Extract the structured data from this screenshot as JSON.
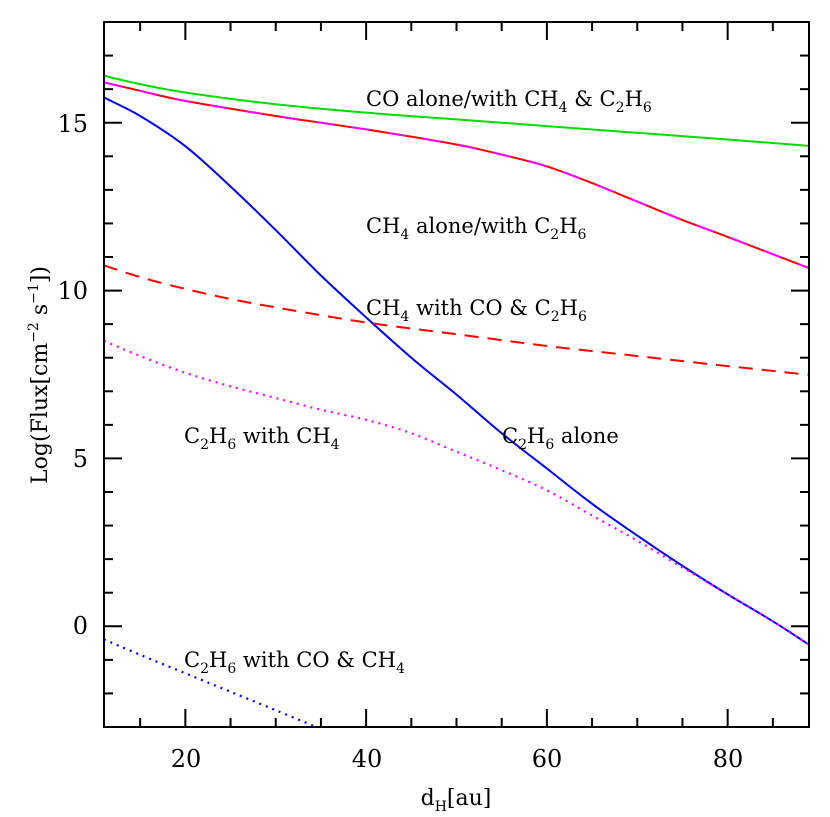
{
  "chart_data": {
    "type": "line",
    "title": "",
    "xlabel": "d_H[au]",
    "ylabel": "Log(Flux[cm^-2 s^-1])",
    "xlim": [
      11,
      89
    ],
    "ylim": [
      -3,
      18
    ],
    "xticks": [
      20,
      40,
      60,
      80
    ],
    "yticks": [
      0,
      5,
      10,
      15
    ],
    "grid": false,
    "legend": "inline annotations",
    "series": [
      {
        "name": "CO alone/with CH4 & C2H6",
        "color": "#00dd00",
        "style": "solid",
        "x": [
          11,
          15,
          20,
          30,
          40,
          50,
          60,
          70,
          80,
          89
        ],
        "y": [
          16.4,
          16.15,
          15.9,
          15.55,
          15.3,
          15.1,
          14.9,
          14.7,
          14.5,
          14.31
        ]
      },
      {
        "name": "CH4 alone/with C2H6",
        "color": "#ff00ff",
        "color2": "#ff0000",
        "style": "solid-alternating",
        "x": [
          11,
          15,
          20,
          30,
          40,
          50,
          55,
          60,
          65,
          70,
          75,
          80,
          89
        ],
        "y": [
          16.2,
          15.95,
          15.65,
          15.2,
          14.8,
          14.35,
          14.05,
          13.7,
          13.2,
          12.65,
          12.1,
          11.6,
          10.67
        ]
      },
      {
        "name": "C2H6 alone",
        "color": "#0000ff",
        "style": "solid",
        "x": [
          11,
          15,
          20,
          25,
          30,
          35,
          40,
          45,
          50,
          55,
          60,
          65,
          70,
          75,
          80,
          85,
          89
        ],
        "y": [
          15.75,
          15.2,
          14.3,
          13.1,
          11.8,
          10.45,
          9.2,
          8.0,
          6.9,
          5.75,
          4.7,
          3.65,
          2.7,
          1.8,
          0.95,
          0.15,
          -0.55
        ]
      },
      {
        "name": "CH4 with CO & C2H6",
        "color": "#ff0000",
        "style": "dashed",
        "x": [
          11,
          15,
          20,
          25,
          30,
          40,
          50,
          60,
          70,
          80,
          89
        ],
        "y": [
          10.75,
          10.4,
          10.05,
          9.75,
          9.5,
          9.05,
          8.7,
          8.35,
          8.05,
          7.75,
          7.49
        ]
      },
      {
        "name": "C2H6 with CH4",
        "color": "#ff00ff",
        "style": "dotted",
        "x": [
          11,
          15,
          20,
          25,
          30,
          35,
          40,
          45,
          50,
          55,
          60,
          65,
          70,
          75,
          80,
          85,
          89
        ],
        "y": [
          8.5,
          8.05,
          7.55,
          7.15,
          6.8,
          6.45,
          6.15,
          5.75,
          5.2,
          4.65,
          4.05,
          3.3,
          2.55,
          1.75,
          0.95,
          0.15,
          -0.55
        ]
      },
      {
        "name": "C2H6 with CO & CH4",
        "color": "#0000ff",
        "style": "dotted",
        "x": [
          11,
          15,
          20,
          25,
          30,
          34.5
        ],
        "y": [
          -0.39,
          -0.85,
          -1.4,
          -1.95,
          -2.5,
          -3.0
        ]
      }
    ],
    "annotations": [
      {
        "text": "CO alone/with CH4 & C2H6",
        "x": 37,
        "y": 15.85
      },
      {
        "text": "CH4 alone/with C2H6",
        "x": 37,
        "y": 11.9
      },
      {
        "text": "CH4 with CO & C2H6",
        "x": 37,
        "y": 9.4
      },
      {
        "text": "C2H6 with CH4",
        "x": 19,
        "y": 5.5
      },
      {
        "text": "C2H6 alone",
        "x": 55,
        "y": 5.5
      },
      {
        "text": "C2H6 with CO & CH4",
        "x": 19,
        "y": -1.0
      }
    ]
  },
  "axes": {
    "x_tick_labels": [
      "20",
      "40",
      "60",
      "80"
    ],
    "y_tick_labels": [
      "0",
      "5",
      "10",
      "15"
    ],
    "xlabel_main": "d",
    "xlabel_sub": "H",
    "xlabel_rest": "[au]",
    "ylabel_main": "Log(Flux[cm",
    "ylabel_sup1": "−2",
    "ylabel_mid": " s",
    "ylabel_sup2": "−1",
    "ylabel_end": "])"
  },
  "labels": {
    "co": {
      "a": "CO alone/with CH",
      "s1": "4",
      "b": " & C",
      "s2": "2",
      "c": "H",
      "s3": "6"
    },
    "ch4_alone": {
      "a": "CH",
      "s1": "4",
      "b": " alone/with C",
      "s2": "2",
      "c": "H",
      "s3": "6"
    },
    "ch4_with": {
      "a": "CH",
      "s1": "4",
      "b": " with CO & C",
      "s2": "2",
      "c": "H",
      "s3": "6"
    },
    "c2h6_ch4": {
      "a": "C",
      "s1": "2",
      "b": "H",
      "s2": "6",
      "c": " with CH",
      "s3": "4"
    },
    "c2h6_alone": {
      "a": "C",
      "s1": "2",
      "b": "H",
      "s2": "6",
      "c": " alone"
    },
    "c2h6_co": {
      "a": "C",
      "s1": "2",
      "b": "H",
      "s2": "6",
      "c": " with CO & CH",
      "s3": "4"
    }
  }
}
